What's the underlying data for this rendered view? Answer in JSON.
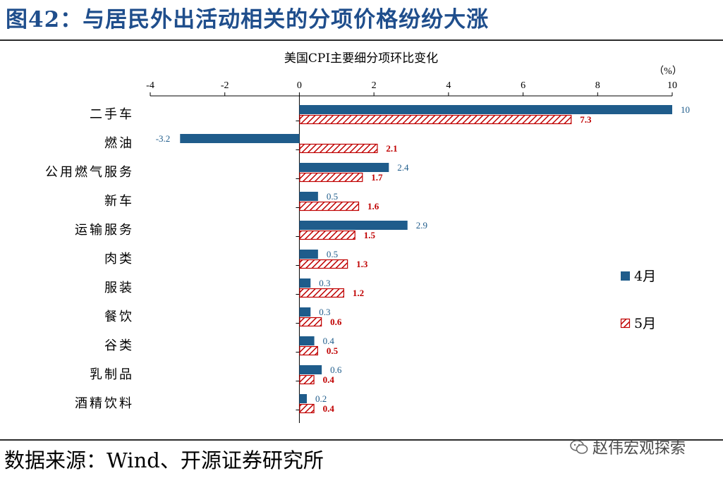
{
  "figure_title": "图42：与居民外出活动相关的分项价格纷纷大涨",
  "source": "数据来源：Wind、开源证券研究所",
  "watermark": "赵伟宏观探索",
  "colors": {
    "april": "#1f5c8b",
    "may": "#c00000",
    "title": "#1f4e8c"
  },
  "chart_data": {
    "type": "bar",
    "orientation": "horizontal",
    "title": "美国CPI主要细分项环比变化",
    "unit_label": "（%）",
    "xlim": [
      -4,
      10
    ],
    "xticks": [
      -4,
      -2,
      0,
      2,
      4,
      6,
      8,
      10
    ],
    "categories": [
      "二手车",
      "燃油",
      "公用燃气服务",
      "新车",
      "运输服务",
      "肉类",
      "服装",
      "餐饮",
      "谷类",
      "乳制品",
      "酒精饮料"
    ],
    "series": [
      {
        "name": "4月",
        "values": [
          10,
          -3.2,
          2.4,
          0.5,
          2.9,
          0.5,
          0.3,
          0.3,
          0.4,
          0.6,
          0.2
        ]
      },
      {
        "name": "5月",
        "values": [
          7.3,
          2.1,
          1.7,
          1.6,
          1.5,
          1.3,
          1.2,
          0.6,
          0.5,
          0.4,
          0.4
        ]
      }
    ],
    "legend_position": "right",
    "grid": false
  }
}
